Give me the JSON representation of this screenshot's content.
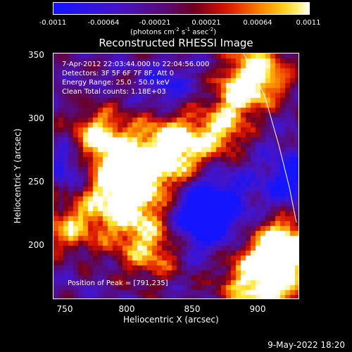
{
  "colorbar": {
    "ticks": [
      "-0.0011",
      "-0.00064",
      "-0.00021",
      "0.00021",
      "0.00064",
      "0.0011"
    ],
    "units_prefix": "(photons cm",
    "units_exp1": "-2",
    "units_mid1": " s",
    "units_exp2": "-1",
    "units_mid2": " asec",
    "units_exp3": "-2",
    "units_suffix": ")"
  },
  "title": "Reconstructed RHESSI Image",
  "info": {
    "time": "7-Apr-2012 22:03:44.000 to 22:04:56.000",
    "detectors": "Detectors: 3F 5F 6F 7F 8F, Att 0",
    "energy": "Energy Range: 25.0 - 50.0 keV",
    "clean": "Clean    Total counts: 1.18E+03",
    "peak": "Position of Peak = [791,235]"
  },
  "axes": {
    "xlabel": "Heliocentric X (arcsec)",
    "ylabel": "Heliocentric Y (arcsec)",
    "xticks": [
      "750",
      "800",
      "850",
      "900"
    ],
    "yticks": [
      "350",
      "300",
      "250",
      "200"
    ]
  },
  "footer": "9-May-2022 18:20"
}
